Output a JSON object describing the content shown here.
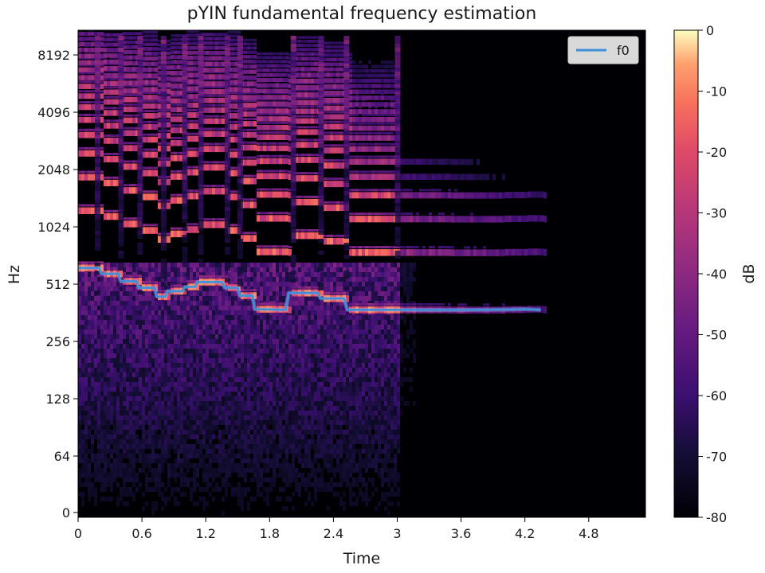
{
  "chart_data": {
    "type": "heatmap",
    "title": "pYIN fundamental frequency estimation",
    "xlabel": "Time",
    "ylabel": "Hz",
    "xlim": [
      0,
      5.3
    ],
    "x_ticks": [
      0,
      0.6,
      1.2,
      1.8,
      2.4,
      3,
      3.6,
      4.2,
      4.8
    ],
    "x_tick_labels": [
      "0",
      "0.6",
      "1.2",
      "1.8",
      "2.4",
      "3",
      "3.6",
      "4.2",
      "4.8"
    ],
    "y_scale": "log2",
    "y_ticks": [
      0,
      64,
      128,
      256,
      512,
      1024,
      2048,
      4096,
      8192
    ],
    "y_tick_labels": [
      "0",
      "64",
      "128",
      "256",
      "512",
      "1024",
      "2048",
      "4096",
      "8192"
    ],
    "colorbar": {
      "label": "dB",
      "range": [
        -80,
        0
      ],
      "ticks": [
        0,
        -10,
        -20,
        -30,
        -40,
        -50,
        -60,
        -70,
        -80
      ],
      "tick_labels": [
        "0",
        "-10",
        "-20",
        "-30",
        "-40",
        "-50",
        "-60",
        "-70",
        "-80"
      ],
      "colormap": "magma"
    },
    "legend": {
      "placement": "top-right",
      "entries": [
        "f0"
      ]
    },
    "series": [
      {
        "name": "f0",
        "color": "#3c8fd8",
        "points": [
          [
            0.0,
            622
          ],
          [
            0.2,
            622
          ],
          [
            0.22,
            580
          ],
          [
            0.38,
            580
          ],
          [
            0.4,
            530
          ],
          [
            0.55,
            530
          ],
          [
            0.57,
            490
          ],
          [
            0.72,
            490
          ],
          [
            0.74,
            440
          ],
          [
            0.82,
            440
          ],
          [
            0.84,
            470
          ],
          [
            0.98,
            470
          ],
          [
            1.0,
            495
          ],
          [
            1.1,
            495
          ],
          [
            1.12,
            525
          ],
          [
            1.35,
            525
          ],
          [
            1.38,
            490
          ],
          [
            1.5,
            490
          ],
          [
            1.52,
            445
          ],
          [
            1.64,
            445
          ],
          [
            1.66,
            378
          ],
          [
            1.95,
            375
          ],
          [
            1.98,
            460
          ],
          [
            2.25,
            460
          ],
          [
            2.28,
            430
          ],
          [
            2.5,
            430
          ],
          [
            2.53,
            375
          ],
          [
            3.0,
            375
          ],
          [
            3.5,
            374
          ],
          [
            4.0,
            376
          ],
          [
            4.2,
            378
          ],
          [
            4.35,
            375
          ]
        ]
      }
    ]
  }
}
